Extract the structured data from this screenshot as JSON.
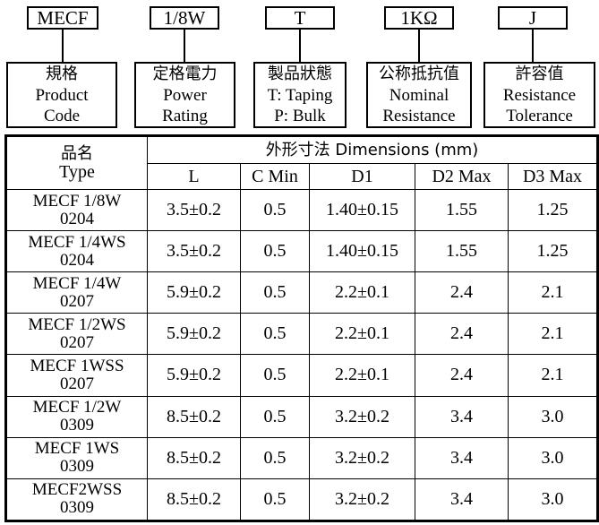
{
  "part_code": [
    {
      "code": "MECF",
      "label_zh": "規格",
      "label_en_1": "Product",
      "label_en_2": "Code"
    },
    {
      "code": "1/8W",
      "label_zh": "定格電力",
      "label_en_1": "Power",
      "label_en_2": "Rating"
    },
    {
      "code": "T",
      "label_zh": "製品狀態",
      "label_en_1": "T: Taping",
      "label_en_2": "P: Bulk"
    },
    {
      "code": "1KΩ",
      "label_zh": "公称抵抗值",
      "label_en_1": "Nominal",
      "label_en_2": "Resistance"
    },
    {
      "code": "J",
      "label_zh": "許容值",
      "label_en_1": "Resistance",
      "label_en_2": "Tolerance"
    }
  ],
  "table": {
    "type_header_zh": "品名",
    "type_header_en": "Type",
    "dimensions_header": "外形寸法 Dimensions (mm)",
    "columns": [
      "L",
      "C Min",
      "D1",
      "D2 Max",
      "D3 Max"
    ],
    "rows": [
      {
        "type_1": "MECF 1/8W",
        "type_2": "0204",
        "L": "3.5±0.2",
        "C": "0.5",
        "D1": "1.40±0.15",
        "D2": "1.55",
        "D3": "1.25"
      },
      {
        "type_1": "MECF 1/4WS",
        "type_2": "0204",
        "L": "3.5±0.2",
        "C": "0.5",
        "D1": "1.40±0.15",
        "D2": "1.55",
        "D3": "1.25"
      },
      {
        "type_1": "MECF 1/4W",
        "type_2": "0207",
        "L": "5.9±0.2",
        "C": "0.5",
        "D1": "2.2±0.1",
        "D2": "2.4",
        "D3": "2.1"
      },
      {
        "type_1": "MECF 1/2WS",
        "type_2": "0207",
        "L": "5.9±0.2",
        "C": "0.5",
        "D1": "2.2±0.1",
        "D2": "2.4",
        "D3": "2.1"
      },
      {
        "type_1": "MECF 1WSS",
        "type_2": "0207",
        "L": "5.9±0.2",
        "C": "0.5",
        "D1": "2.2±0.1",
        "D2": "2.4",
        "D3": "2.1"
      },
      {
        "type_1": "MECF 1/2W",
        "type_2": "0309",
        "L": "8.5±0.2",
        "C": "0.5",
        "D1": "3.2±0.2",
        "D2": "3.4",
        "D3": "3.0"
      },
      {
        "type_1": "MECF 1WS",
        "type_2": "0309",
        "L": "8.5±0.2",
        "C": "0.5",
        "D1": "3.2±0.2",
        "D2": "3.4",
        "D3": "3.0"
      },
      {
        "type_1": "MECF2WSS",
        "type_2": "0309",
        "L": "8.5±0.2",
        "C": "0.5",
        "D1": "3.2±0.2",
        "D2": "3.4",
        "D3": "3.0"
      }
    ]
  }
}
